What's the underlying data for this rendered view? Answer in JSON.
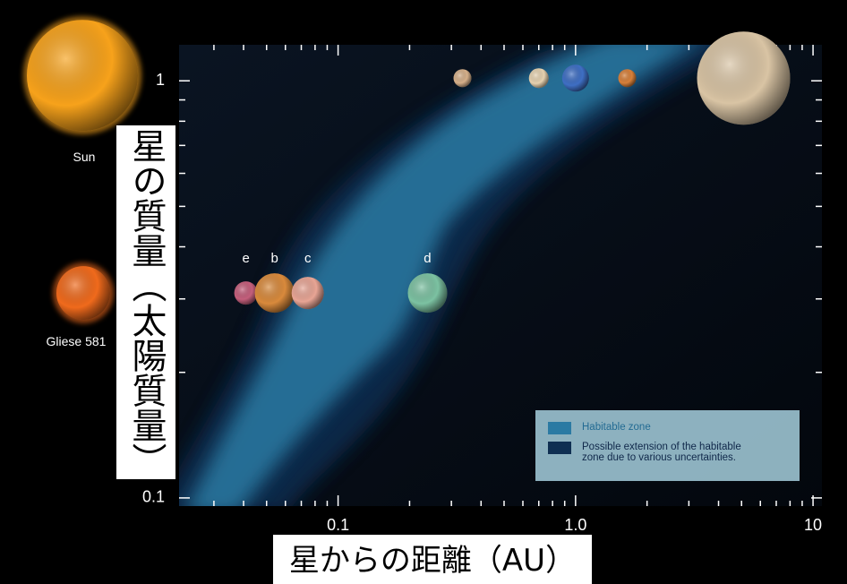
{
  "chart_data": {
    "type": "scatter",
    "xlim": [
      0.0214,
      10.9
    ],
    "ylim": [
      0.0956,
      1.22
    ],
    "log_x": true,
    "log_y": true,
    "xticks": [
      0.1,
      {
        "value": 1,
        "label": "1.0"
      },
      10
    ],
    "yticks": [
      0.1,
      1
    ],
    "x_minor_ticks": [
      0.03,
      0.04,
      0.05,
      0.06,
      0.07,
      0.08,
      0.09,
      0.2,
      0.3,
      0.4,
      0.5,
      0.6,
      0.7,
      0.8,
      0.9,
      2,
      3,
      4,
      5,
      6,
      7,
      8,
      9
    ],
    "y_minor_ticks": [
      0.2,
      0.3,
      0.4,
      0.5,
      0.6,
      0.7,
      0.8,
      0.9
    ],
    "x_label": "星からの距離（AU）",
    "y_label": "星の質量（太陽質量）",
    "stars": [
      {
        "name": "Sun",
        "y": 1,
        "color": "#f7a21b"
      },
      {
        "name": "Gliese 581",
        "y": 0.31,
        "color": "#f06a1c"
      }
    ],
    "points": [
      {
        "label": "e",
        "x": 0.0409,
        "y": 0.31,
        "color": "#c45f7c"
      },
      {
        "label": "b",
        "x": 0.054,
        "y": 0.31,
        "color": "#d98a3c"
      },
      {
        "label": "c",
        "x": 0.0745,
        "y": 0.31,
        "color": "#e8a595"
      },
      {
        "label": "d",
        "x": 0.238,
        "y": 0.31,
        "color": "#7cc2a2"
      },
      {
        "x": 0.334,
        "y": 1,
        "color": "#d6b08a"
      },
      {
        "x": 0.7,
        "y": 1,
        "color": "#e6d2b0"
      },
      {
        "x": 1.0,
        "y": 1,
        "color": "#3f6fc4"
      },
      {
        "x": 1.65,
        "y": 1,
        "color": "#d7803a"
      },
      {
        "x": 5.1,
        "y": 1,
        "color": "#d9c4a4"
      }
    ],
    "legend": [
      "Habitable zone",
      "Possible extension of the habitable zone due to various uncertainties."
    ],
    "legend_colors": [
      "#2b7aa3",
      "#0f2f52"
    ]
  }
}
